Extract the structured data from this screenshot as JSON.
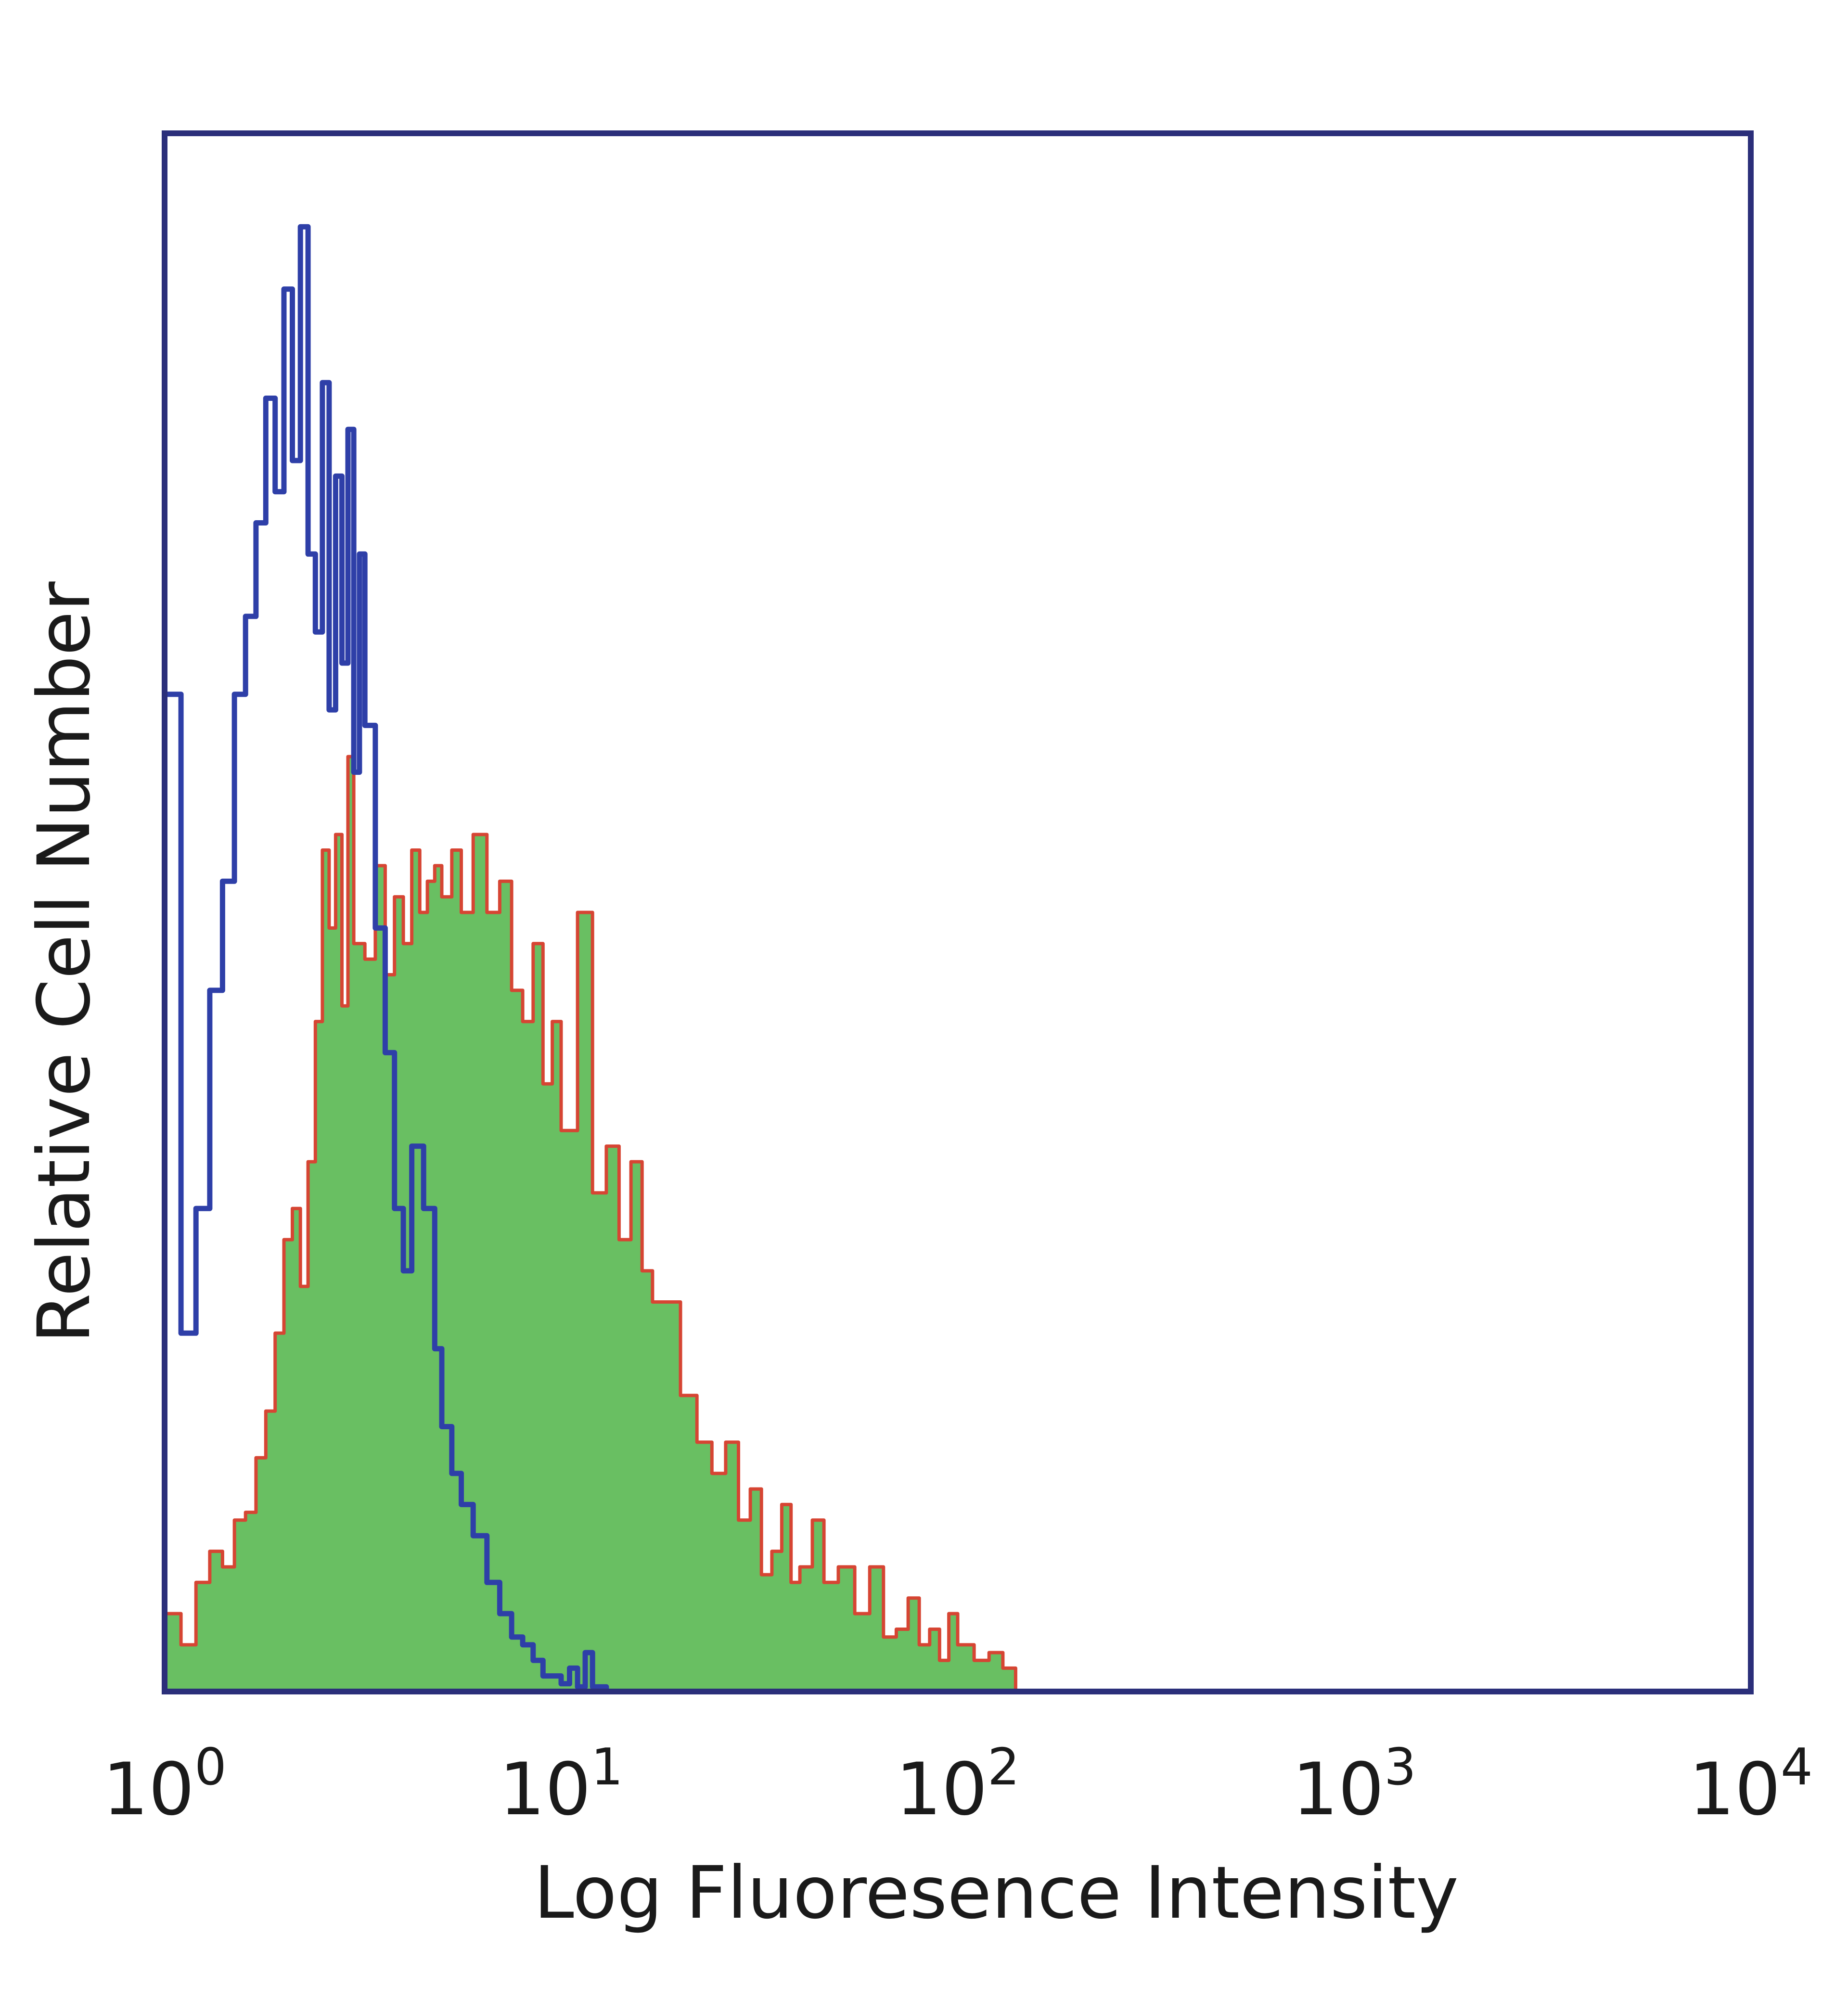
{
  "chart_data": {
    "type": "area",
    "title": "",
    "xlabel": "Log Fluoresence Intensity",
    "ylabel": "Relative Cell Number",
    "x_scale": "log",
    "xlim": [
      1,
      10000
    ],
    "ylim": [
      0,
      100
    ],
    "grid": false,
    "legend": "none",
    "x_ticks": [
      {
        "value": 1,
        "base": "10",
        "exp": "0"
      },
      {
        "value": 10,
        "base": "10",
        "exp": "1"
      },
      {
        "value": 100,
        "base": "10",
        "exp": "2"
      },
      {
        "value": 1000,
        "base": "10",
        "exp": "3"
      },
      {
        "value": 10000,
        "base": "10",
        "exp": "4"
      }
    ],
    "colors": {
      "frame": "#2b2f7a",
      "control_line": "#2e3fa8",
      "sample_fill": "#69bf62",
      "sample_line": "#d64533"
    },
    "series": [
      {
        "style": "line",
        "color": "#2e3fa8",
        "x": [
          1,
          1.1,
          1.2,
          1.3,
          1.4,
          1.5,
          1.6,
          1.7,
          1.8,
          1.9,
          2.0,
          2.1,
          2.2,
          2.3,
          2.4,
          2.5,
          2.6,
          2.7,
          2.8,
          2.9,
          3.0,
          3.1,
          3.2,
          3.4,
          3.6,
          3.8,
          4.0,
          4.2,
          4.5,
          4.8,
          5.0,
          5.3,
          5.6,
          6.0,
          6.5,
          7.0,
          7.5,
          8.0,
          8.5,
          9.0,
          9.5,
          10,
          10.5,
          11,
          11.5,
          12,
          13
        ],
        "y": [
          64,
          23,
          31,
          45,
          52,
          64,
          69,
          75,
          83,
          77,
          90,
          79,
          94,
          73,
          68,
          84,
          63,
          78,
          66,
          81,
          59,
          73,
          62,
          49,
          41,
          31,
          27,
          35,
          31,
          22,
          17,
          14,
          12,
          10,
          7,
          5,
          3.5,
          3,
          2,
          1,
          1,
          0.5,
          1.5,
          0.3,
          2.5,
          0.3,
          0
        ]
      },
      {
        "style": "filled",
        "color": "#69bf62",
        "stroke": "#d64533",
        "x": [
          1,
          1.1,
          1.2,
          1.3,
          1.4,
          1.5,
          1.6,
          1.7,
          1.8,
          1.9,
          2.0,
          2.1,
          2.2,
          2.3,
          2.4,
          2.5,
          2.6,
          2.7,
          2.8,
          2.9,
          3.0,
          3.2,
          3.4,
          3.6,
          3.8,
          4.0,
          4.2,
          4.4,
          4.6,
          4.8,
          5.0,
          5.3,
          5.6,
          6.0,
          6.5,
          7.0,
          7.5,
          8.0,
          8.5,
          9.0,
          9.5,
          10,
          11,
          12,
          13,
          14,
          15,
          16,
          17,
          18,
          20,
          22,
          24,
          26,
          28,
          30,
          32,
          34,
          36,
          38,
          40,
          43,
          46,
          50,
          55,
          60,
          65,
          70,
          75,
          80,
          85,
          90,
          95,
          100,
          110,
          120,
          130,
          140
        ],
        "y": [
          5,
          3,
          7,
          9,
          8,
          11,
          11.5,
          15,
          18,
          23,
          29,
          31,
          26,
          34,
          43,
          54,
          49,
          55,
          44,
          60,
          48,
          47,
          53,
          46,
          51,
          48,
          54,
          50,
          52,
          53,
          51,
          54,
          50,
          55,
          50,
          52,
          45,
          43,
          48,
          39,
          43,
          36,
          50,
          32,
          35,
          29,
          34,
          27,
          25,
          25,
          19,
          16,
          14,
          16,
          11,
          13,
          7.5,
          9,
          12,
          7,
          8,
          11,
          7,
          8,
          5,
          8,
          3.5,
          4,
          6,
          3,
          4,
          2,
          5,
          3,
          2,
          2.5,
          1.5,
          0
        ]
      }
    ]
  }
}
